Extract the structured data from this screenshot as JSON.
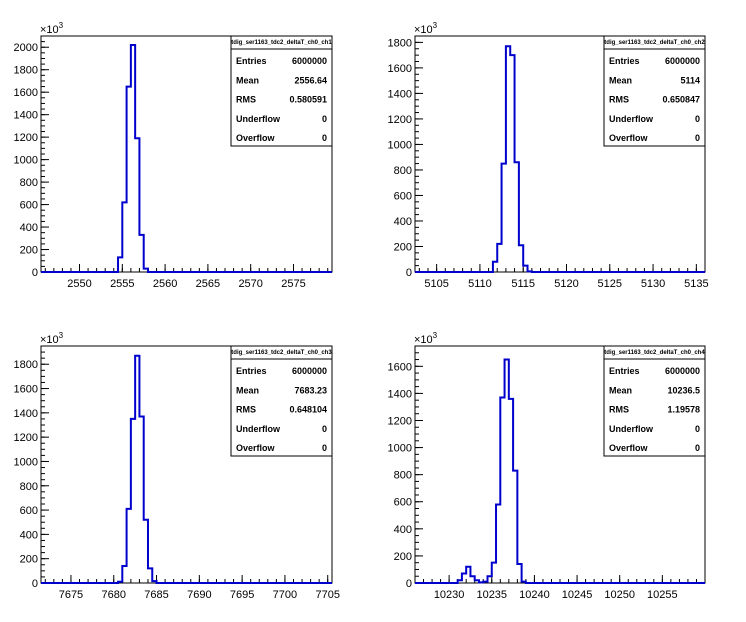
{
  "chart_data": [
    {
      "type": "histogram",
      "title": "tdig_ser1163_tdc2_deltaT_ch0_ch1",
      "stats": [
        {
          "label": "Entries",
          "value": "6000000"
        },
        {
          "label": "Mean",
          "value": "2556.64"
        },
        {
          "label": "RMS",
          "value": "0.580591"
        },
        {
          "label": "Underflow",
          "value": "0"
        },
        {
          "label": "Overflow",
          "value": "0"
        }
      ],
      "xlim": [
        2545.5,
        2579.5
      ],
      "ylim": [
        0,
        2100
      ],
      "y_exponent": "10",
      "y_power": "3",
      "xticks": [
        2550,
        2555,
        2560,
        2565,
        2570,
        2575
      ],
      "yticks": [
        0,
        200,
        400,
        600,
        800,
        1000,
        1200,
        1400,
        1600,
        1800,
        2000
      ],
      "bin_edges": [
        2554.5,
        2555.0,
        2555.5,
        2556.0,
        2556.5,
        2557.0,
        2557.5,
        2558.0
      ],
      "values": [
        130,
        620,
        1650,
        2020,
        1190,
        330,
        30
      ]
    },
    {
      "type": "histogram",
      "title": "tdig_ser1163_tdc2_deltaT_ch0_ch2",
      "stats": [
        {
          "label": "Entries",
          "value": "6000000"
        },
        {
          "label": "Mean",
          "value": "5114"
        },
        {
          "label": "RMS",
          "value": "0.650847"
        },
        {
          "label": "Underflow",
          "value": "0"
        },
        {
          "label": "Overflow",
          "value": "0"
        }
      ],
      "xlim": [
        5102.5,
        5136.0
      ],
      "ylim": [
        0,
        1850
      ],
      "y_exponent": "10",
      "y_power": "3",
      "xticks": [
        5105,
        5110,
        5115,
        5120,
        5125,
        5130,
        5135
      ],
      "yticks": [
        0,
        200,
        400,
        600,
        800,
        1000,
        1200,
        1400,
        1600,
        1800
      ],
      "bin_edges": [
        5111.5,
        5112.0,
        5112.5,
        5113.0,
        5113.5,
        5114.0,
        5114.5,
        5115.0,
        5115.5,
        5116.0
      ],
      "values": [
        80,
        220,
        850,
        1770,
        1700,
        860,
        210,
        50,
        5
      ]
    },
    {
      "type": "histogram",
      "title": "tdig_ser1163_tdc2_deltaT_ch0_ch3",
      "stats": [
        {
          "label": "Entries",
          "value": "6000000"
        },
        {
          "label": "Mean",
          "value": "7683.23"
        },
        {
          "label": "RMS",
          "value": "0.648104"
        },
        {
          "label": "Underflow",
          "value": "0"
        },
        {
          "label": "Overflow",
          "value": "0"
        }
      ],
      "xlim": [
        7671.5,
        7705.5
      ],
      "ylim": [
        0,
        1950
      ],
      "y_exponent": "10",
      "y_power": "3",
      "xticks": [
        7675,
        7680,
        7685,
        7690,
        7695,
        7700,
        7705
      ],
      "yticks": [
        0,
        200,
        400,
        600,
        800,
        1000,
        1200,
        1400,
        1600,
        1800
      ],
      "bin_edges": [
        7680.5,
        7681.0,
        7681.5,
        7682.0,
        7682.5,
        7683.0,
        7683.5,
        7684.0,
        7684.5,
        7685.0
      ],
      "values": [
        10,
        140,
        610,
        1350,
        1870,
        1370,
        520,
        120,
        15
      ]
    },
    {
      "type": "histogram",
      "title": "tdig_ser1163_tdc2_deltaT_ch0_ch4",
      "stats": [
        {
          "label": "Entries",
          "value": "6000000"
        },
        {
          "label": "Mean",
          "value": "10236.5"
        },
        {
          "label": "RMS",
          "value": "1.19578"
        },
        {
          "label": "Underflow",
          "value": "0"
        },
        {
          "label": "Overflow",
          "value": "0"
        }
      ],
      "xlim": [
        10226.0,
        10260.0
      ],
      "ylim": [
        0,
        1750
      ],
      "y_exponent": "10",
      "y_power": "3",
      "xticks": [
        10230,
        10235,
        10240,
        10245,
        10250,
        10255
      ],
      "yticks": [
        0,
        200,
        400,
        600,
        800,
        1000,
        1200,
        1400,
        1600
      ],
      "bin_edges": [
        10231.0,
        10231.5,
        10232.0,
        10232.5,
        10233.0,
        10233.5,
        10234.0,
        10234.5,
        10235.0,
        10235.5,
        10236.0,
        10236.5,
        10237.0,
        10237.5,
        10238.0,
        10238.5,
        10239.0
      ],
      "values": [
        20,
        70,
        120,
        50,
        20,
        5,
        10,
        50,
        150,
        580,
        1370,
        1650,
        1360,
        830,
        140,
        10
      ]
    }
  ]
}
